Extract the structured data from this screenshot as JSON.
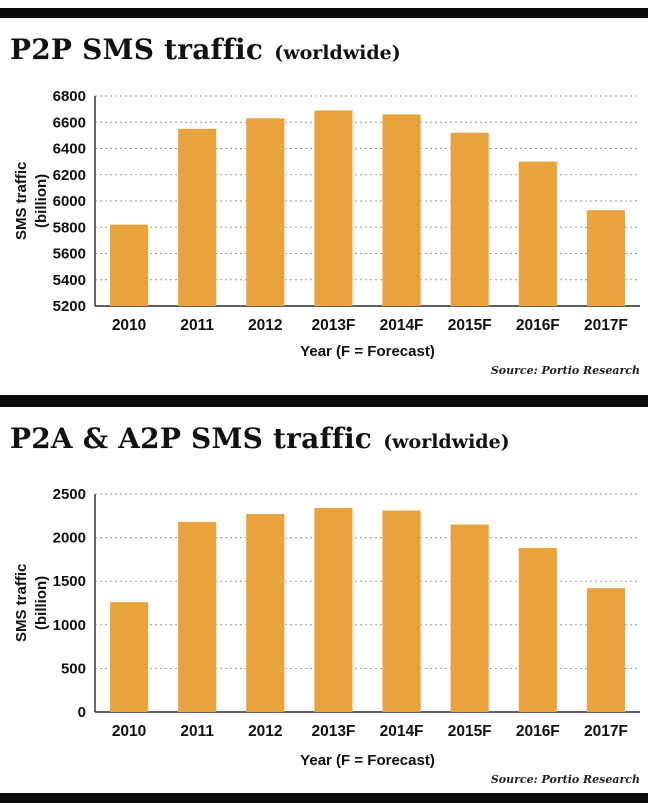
{
  "page": {
    "background": "#FFFFFF",
    "rule_color": "#0A0A0A",
    "accent_color": "#E8A33D"
  },
  "chart_data": [
    {
      "type": "bar",
      "title": "P2P SMS traffic",
      "subtitle": "(worldwide)",
      "categories": [
        "2010",
        "2011",
        "2012",
        "2013F",
        "2014F",
        "2015F",
        "2016F",
        "2017F"
      ],
      "values": [
        5820,
        6550,
        6630,
        6690,
        6660,
        6520,
        6300,
        5930
      ],
      "xlabel": "Year (F = Forecast)",
      "ylabel": "SMS traffic (billion)",
      "ylabel_lines": [
        "SMS traffic",
        "(billion)"
      ],
      "ylim": [
        5200,
        6800
      ],
      "yticks": [
        5200,
        5400,
        5600,
        5800,
        6000,
        6200,
        6400,
        6600,
        6800
      ],
      "grid": true,
      "legend": false,
      "bar_color": "#E8A33D",
      "source": "Source: Portio Research"
    },
    {
      "type": "bar",
      "title": "P2A & A2P SMS traffic",
      "subtitle": "(worldwide)",
      "categories": [
        "2010",
        "2011",
        "2012",
        "2013F",
        "2014F",
        "2015F",
        "2016F",
        "2017F"
      ],
      "values": [
        1260,
        2180,
        2270,
        2340,
        2310,
        2150,
        1880,
        1420
      ],
      "xlabel": "Year (F = Forecast)",
      "ylabel": "SMS traffic (billion)",
      "ylabel_lines": [
        "SMS traffic",
        "(billion)"
      ],
      "ylim": [
        0,
        2500
      ],
      "yticks": [
        0,
        500,
        1000,
        1500,
        2000,
        2500
      ],
      "grid": true,
      "legend": false,
      "bar_color": "#E8A33D",
      "source": "Source: Portio Research"
    }
  ]
}
